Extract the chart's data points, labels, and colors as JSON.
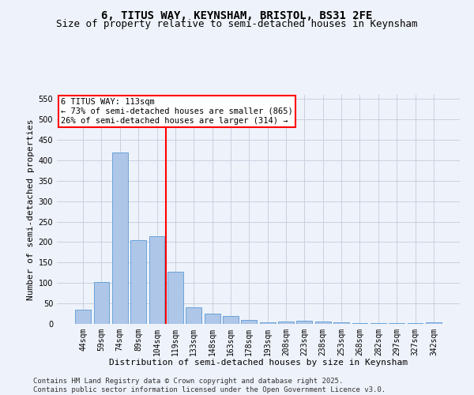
{
  "title": "6, TITUS WAY, KEYNSHAM, BRISTOL, BS31 2FE",
  "subtitle": "Size of property relative to semi-detached houses in Keynsham",
  "xlabel": "Distribution of semi-detached houses by size in Keynsham",
  "ylabel": "Number of semi-detached properties",
  "categories": [
    "44sqm",
    "59sqm",
    "74sqm",
    "89sqm",
    "104sqm",
    "119sqm",
    "133sqm",
    "148sqm",
    "163sqm",
    "178sqm",
    "193sqm",
    "208sqm",
    "223sqm",
    "238sqm",
    "253sqm",
    "268sqm",
    "282sqm",
    "297sqm",
    "327sqm",
    "342sqm"
  ],
  "values": [
    35,
    102,
    420,
    205,
    215,
    127,
    40,
    25,
    20,
    9,
    3,
    6,
    7,
    6,
    4,
    1,
    1,
    2,
    1,
    3
  ],
  "bar_color": "#aec6e8",
  "bar_edge_color": "#5b9bd5",
  "vline_x": 4.5,
  "vline_color": "red",
  "annotation_title": "6 TITUS WAY: 113sqm",
  "annotation_line1": "← 73% of semi-detached houses are smaller (865)",
  "annotation_line2": "26% of semi-detached houses are larger (314) →",
  "annotation_box_color": "white",
  "annotation_box_edge_color": "red",
  "ylim": [
    0,
    560
  ],
  "yticks": [
    0,
    50,
    100,
    150,
    200,
    250,
    300,
    350,
    400,
    450,
    500,
    550
  ],
  "footer": "Contains HM Land Registry data © Crown copyright and database right 2025.\nContains public sector information licensed under the Open Government Licence v3.0.",
  "bg_color": "#eef2fa",
  "plot_bg_color": "#eef2fa",
  "grid_color": "#c8d0e0",
  "title_fontsize": 10,
  "subtitle_fontsize": 9,
  "label_fontsize": 8,
  "tick_fontsize": 7,
  "footer_fontsize": 6.5,
  "annotation_fontsize": 7.5
}
